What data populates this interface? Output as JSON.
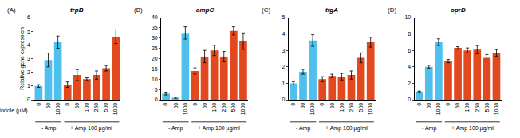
{
  "chart_data": [
    {
      "type": "bar",
      "panel": "(A)",
      "title": "trpB",
      "y_label": "Relative gene expression",
      "x_label": "Indole (µM)",
      "categories": [
        "0",
        "50",
        "1000",
        "0",
        "50",
        "100",
        "250",
        "500",
        "1000"
      ],
      "values": [
        1.0,
        2.9,
        4.2,
        1.1,
        1.8,
        1.5,
        1.8,
        2.3,
        4.6
      ],
      "errors": [
        0.1,
        0.5,
        0.45,
        0.2,
        0.4,
        0.1,
        0.3,
        0.2,
        0.5
      ],
      "colors": [
        "#4fc0ee",
        "#4fc0ee",
        "#4fc0ee",
        "#e2491f",
        "#e2491f",
        "#e2491f",
        "#e2491f",
        "#e2491f",
        "#e2491f"
      ],
      "groups": [
        {
          "label": "- Amp",
          "start": 0,
          "end": 2
        },
        {
          "label": "+ Amp 100 µg/ml",
          "start": 3,
          "end": 8
        }
      ],
      "ylim": [
        0,
        6
      ],
      "yticks": [
        0,
        1,
        2,
        3,
        4,
        5,
        6
      ]
    },
    {
      "type": "bar",
      "panel": "(B)",
      "title": "ampC",
      "categories": [
        "0",
        "50",
        "1000",
        "0",
        "50",
        "100",
        "250",
        "500",
        "1000"
      ],
      "values": [
        3.0,
        1.0,
        32.5,
        14.0,
        21.0,
        24.0,
        21.0,
        33.5,
        28.5
      ],
      "errors": [
        0.7,
        0.3,
        3.0,
        1.5,
        3.0,
        2.5,
        2.5,
        2.0,
        4.0
      ],
      "colors": [
        "#4fc0ee",
        "#4fc0ee",
        "#4fc0ee",
        "#e2491f",
        "#e2491f",
        "#e2491f",
        "#e2491f",
        "#e2491f",
        "#e2491f"
      ],
      "groups": [
        {
          "label": "- Amp",
          "start": 0,
          "end": 2
        },
        {
          "label": "+ Amp 100 µg/ml",
          "start": 3,
          "end": 8
        }
      ],
      "ylim": [
        0,
        40
      ],
      "yticks": [
        0,
        5,
        10,
        15,
        20,
        25,
        30,
        35,
        40
      ]
    },
    {
      "type": "bar",
      "panel": "(C)",
      "title": "ttgA",
      "categories": [
        "0",
        "50",
        "1000",
        "0",
        "50",
        "100",
        "250",
        "500",
        "1000"
      ],
      "values": [
        1.0,
        1.7,
        3.6,
        1.25,
        1.45,
        1.4,
        1.5,
        2.55,
        3.5
      ],
      "errors": [
        0.1,
        0.15,
        0.35,
        0.15,
        0.1,
        0.2,
        0.25,
        0.3,
        0.3
      ],
      "colors": [
        "#4fc0ee",
        "#4fc0ee",
        "#4fc0ee",
        "#e2491f",
        "#e2491f",
        "#e2491f",
        "#e2491f",
        "#e2491f",
        "#e2491f"
      ],
      "groups": [
        {
          "label": "- Amp",
          "start": 0,
          "end": 2
        },
        {
          "label": "+ Amp 100 µg/ml",
          "start": 3,
          "end": 8
        }
      ],
      "ylim": [
        0,
        5
      ],
      "yticks": [
        0,
        1,
        2,
        3,
        4,
        5
      ]
    },
    {
      "type": "bar",
      "panel": "(D)",
      "title": "oprD",
      "categories": [
        "0",
        "50",
        "1000",
        "0",
        "50",
        "100",
        "250",
        "500",
        "1000"
      ],
      "values": [
        1.0,
        4.0,
        7.0,
        4.7,
        6.3,
        6.0,
        6.1,
        5.1,
        5.7
      ],
      "errors": [
        0.05,
        0.2,
        0.4,
        0.2,
        0.15,
        0.3,
        0.5,
        0.4,
        0.4
      ],
      "colors": [
        "#4fc0ee",
        "#4fc0ee",
        "#4fc0ee",
        "#e2491f",
        "#e2491f",
        "#e2491f",
        "#e2491f",
        "#e2491f",
        "#e2491f"
      ],
      "groups": [
        {
          "label": "- Amp",
          "start": 0,
          "end": 2
        },
        {
          "label": "+ Amp 100 µg/ml",
          "start": 3,
          "end": 8
        }
      ],
      "ylim": [
        0,
        10
      ],
      "yticks": [
        0,
        2,
        4,
        6,
        8,
        10
      ]
    }
  ]
}
